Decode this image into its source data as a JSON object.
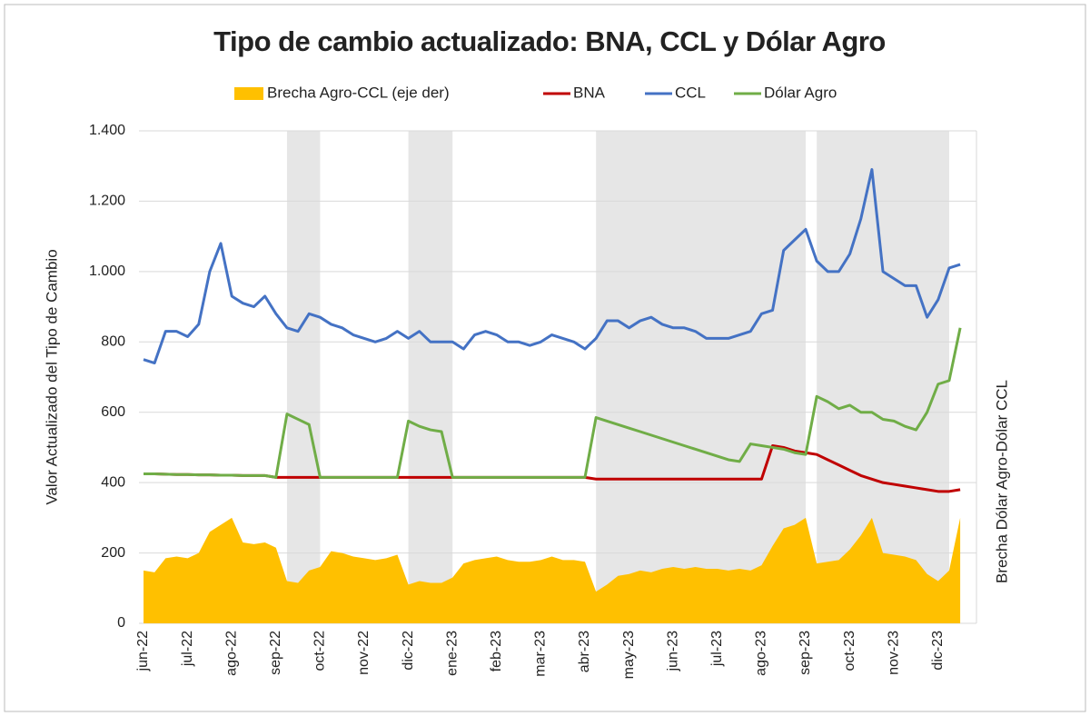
{
  "chart_data": {
    "type": "line",
    "title": "Tipo de cambio actualizado: BNA, CCL y Dólar Agro",
    "y_label": "Valor Actualizado del Tipo de Cambio",
    "y2_label": "Brecha Dólar Agro-Dólar CCL",
    "categories": [
      "jun-22",
      null,
      null,
      null,
      "jul-22",
      null,
      null,
      null,
      "ago-22",
      null,
      null,
      null,
      "sep-22",
      null,
      null,
      null,
      "oct-22",
      null,
      null,
      null,
      "nov-22",
      null,
      null,
      null,
      "dic-22",
      null,
      null,
      null,
      "ene-23",
      null,
      null,
      null,
      "feb-23",
      null,
      null,
      null,
      "mar-23",
      null,
      null,
      null,
      "abr-23",
      null,
      null,
      null,
      "may-23",
      null,
      null,
      null,
      "jun-23",
      null,
      null,
      null,
      "jul-23",
      null,
      null,
      null,
      "ago-23",
      null,
      null,
      null,
      "sep-23",
      null,
      null,
      null,
      "oct-23",
      null,
      null,
      null,
      "nov-23",
      null,
      null,
      null,
      "dic-23",
      null,
      null
    ],
    "ylim": [
      0,
      1400
    ],
    "yticks": [
      0,
      200,
      400,
      600,
      800,
      {
        "value": 1000,
        "label": "1.000"
      },
      {
        "value": 1200,
        "label": "1.200"
      },
      {
        "value": 1400,
        "label": "1.400"
      }
    ],
    "y2lim": [
      0,
      1400
    ],
    "grid": true,
    "legend": "top",
    "shaded_periods": [
      [
        13,
        16
      ],
      [
        24,
        28
      ],
      [
        41,
        60
      ],
      [
        61,
        73
      ]
    ],
    "series": [
      {
        "name": "Brecha Agro-CCL (eje der)",
        "kind": "area",
        "axis": "y2",
        "color": "#ffc000",
        "values": [
          150,
          145,
          185,
          190,
          185,
          200,
          260,
          280,
          300,
          230,
          225,
          230,
          215,
          120,
          115,
          150,
          160,
          205,
          200,
          190,
          185,
          180,
          185,
          195,
          110,
          120,
          115,
          115,
          130,
          170,
          180,
          185,
          190,
          180,
          175,
          175,
          180,
          190,
          180,
          180,
          175,
          90,
          110,
          135,
          140,
          150,
          145,
          155,
          160,
          155,
          160,
          155,
          155,
          150,
          155,
          150,
          165,
          220,
          270,
          280,
          300,
          170,
          175,
          180,
          210,
          250,
          300,
          200,
          195,
          190,
          180,
          140,
          120,
          150,
          300
        ]
      },
      {
        "name": "BNA",
        "kind": "line",
        "color": "#c00000",
        "values": [
          425,
          425,
          424,
          423,
          423,
          422,
          422,
          421,
          421,
          420,
          420,
          420,
          415,
          415,
          415,
          415,
          415,
          415,
          415,
          415,
          415,
          415,
          415,
          415,
          415,
          415,
          415,
          415,
          415,
          415,
          415,
          415,
          415,
          415,
          415,
          415,
          415,
          415,
          415,
          415,
          415,
          410,
          410,
          410,
          410,
          410,
          410,
          410,
          410,
          410,
          410,
          410,
          410,
          410,
          410,
          410,
          410,
          505,
          500,
          490,
          485,
          480,
          465,
          450,
          435,
          420,
          410,
          400,
          395,
          390,
          385,
          380,
          375,
          375,
          380
        ]
      },
      {
        "name": "CCL",
        "kind": "line",
        "color": "#4472c4",
        "values": [
          750,
          740,
          830,
          830,
          815,
          850,
          1000,
          1080,
          930,
          910,
          900,
          930,
          880,
          840,
          830,
          880,
          870,
          850,
          840,
          820,
          810,
          800,
          810,
          830,
          810,
          830,
          800,
          800,
          800,
          780,
          820,
          830,
          820,
          800,
          800,
          790,
          800,
          820,
          810,
          800,
          780,
          810,
          860,
          860,
          840,
          860,
          870,
          850,
          840,
          840,
          830,
          810,
          810,
          810,
          820,
          830,
          880,
          890,
          1060,
          1090,
          1120,
          1030,
          1000,
          1000,
          1050,
          1150,
          1290,
          1000,
          980,
          960,
          960,
          870,
          920,
          1010,
          1020
        ]
      },
      {
        "name": "Dólar Agro",
        "kind": "line",
        "color": "#70ad47",
        "values": [
          425,
          425,
          424,
          423,
          423,
          422,
          422,
          421,
          421,
          420,
          420,
          420,
          415,
          595,
          580,
          565,
          415,
          415,
          415,
          415,
          415,
          415,
          415,
          415,
          575,
          560,
          550,
          545,
          415,
          415,
          415,
          415,
          415,
          415,
          415,
          415,
          415,
          415,
          415,
          415,
          415,
          585,
          575,
          565,
          555,
          545,
          535,
          525,
          515,
          505,
          495,
          485,
          475,
          465,
          460,
          510,
          505,
          500,
          495,
          485,
          480,
          645,
          630,
          610,
          620,
          600,
          600,
          580,
          575,
          560,
          550,
          600,
          680,
          690,
          840
        ]
      }
    ]
  }
}
